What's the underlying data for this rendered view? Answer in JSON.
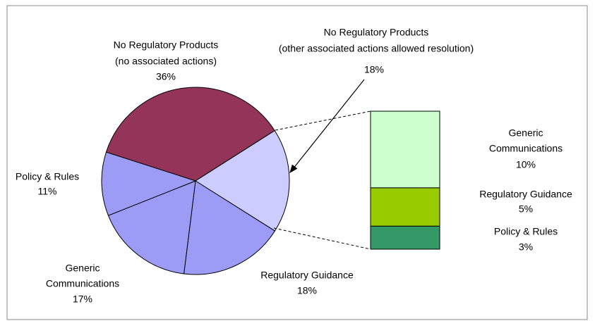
{
  "chart_data": {
    "type": "pie-of-bar",
    "pie": {
      "labels": [
        [
          "No Regulatory Products",
          "(no associated actions)"
        ],
        [
          "No Regulatory Products",
          "(other associated actions allowed resolution)"
        ],
        [
          "Regulatory Guidance"
        ],
        [
          "Generic",
          "Communications"
        ],
        [
          "Policy & Rules"
        ]
      ],
      "values": [
        36,
        18,
        18,
        17,
        11
      ],
      "value_labels": [
        "36%",
        "18%",
        "18%",
        "17%",
        "11%"
      ],
      "colors": [
        "#943459",
        "#ccccff",
        "#9c9cf6",
        "#9c9cf6",
        "#9c9cf6"
      ]
    },
    "bar": {
      "labels": [
        [
          "Generic",
          "Communications"
        ],
        [
          "Regulatory Guidance"
        ],
        [
          "Policy & Rules"
        ]
      ],
      "values": [
        10,
        5,
        3
      ],
      "value_labels": [
        "10%",
        "5%",
        "3%"
      ],
      "colors": [
        "#ccffcc",
        "#99cc00",
        "#339966"
      ]
    }
  }
}
